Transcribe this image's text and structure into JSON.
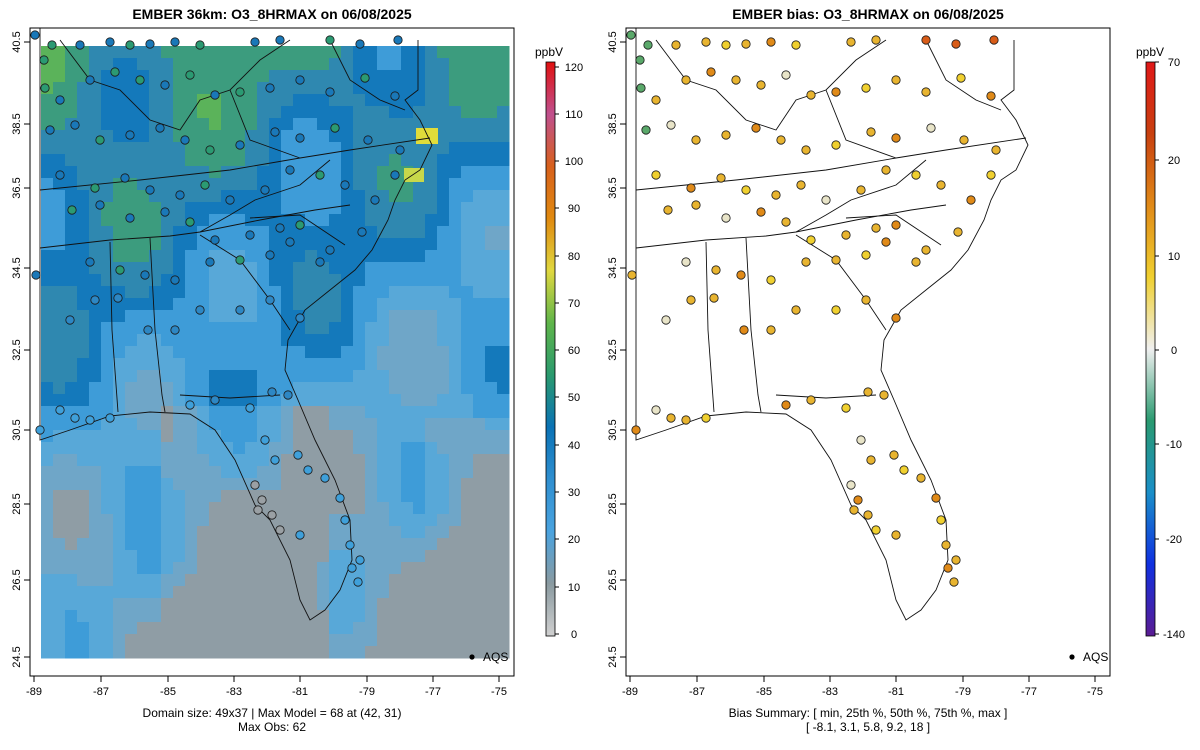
{
  "left": {
    "title": "EMBER 36km: O3_8HRMAX on 06/08/2025",
    "caption_line1": "Domain size: 49x37 | Max Model = 68 at (42, 31)",
    "caption_line2": "Max Obs: 62",
    "units": "ppbV",
    "colorbar_ticks": [
      "0",
      "10",
      "20",
      "30",
      "40",
      "50",
      "60",
      "70",
      "80",
      "90",
      "100",
      "110",
      "120"
    ],
    "legend_label": "AQS"
  },
  "right": {
    "title": "EMBER bias: O3_8HRMAX on 06/08/2025",
    "caption_line1": "Bias Summary: [ min, 25th %, 50th %, 75th %, max ]",
    "caption_line2": "[ -8.1,   3.1,   5.8,   9.2,   18 ]",
    "units": "ppbV",
    "colorbar_ticks": [
      "70",
      "20",
      "10",
      "0",
      "-10",
      "-20",
      "-140"
    ],
    "legend_label": "AQS"
  },
  "axes": {
    "x_ticks": [
      "-89",
      "-87",
      "-85",
      "-83",
      "-81",
      "-79",
      "-77",
      "-75"
    ],
    "y_ticks": [
      "40.5",
      "38.5",
      "36.5",
      "34.5",
      "32.5",
      "30.5",
      "28.5",
      "26.5",
      "24.5"
    ]
  },
  "colors": {
    "concentration_scale": [
      "#d0d0d0",
      "#8a9aa0",
      "#4aa3df",
      "#2f8fd0",
      "#0a72b5",
      "#2a9a6e",
      "#5fb54a",
      "#e0d840",
      "#e08a10",
      "#d7601c",
      "#c0508e",
      "#e01010"
    ],
    "bias_scale": [
      "#5b1c93",
      "#1030e0",
      "#1a8fc8",
      "#2a9a70",
      "#f0f0f0",
      "#f0d030",
      "#e08a18",
      "#c84010",
      "#e01818"
    ],
    "site_bias_positive": "#e8b430"
  }
}
